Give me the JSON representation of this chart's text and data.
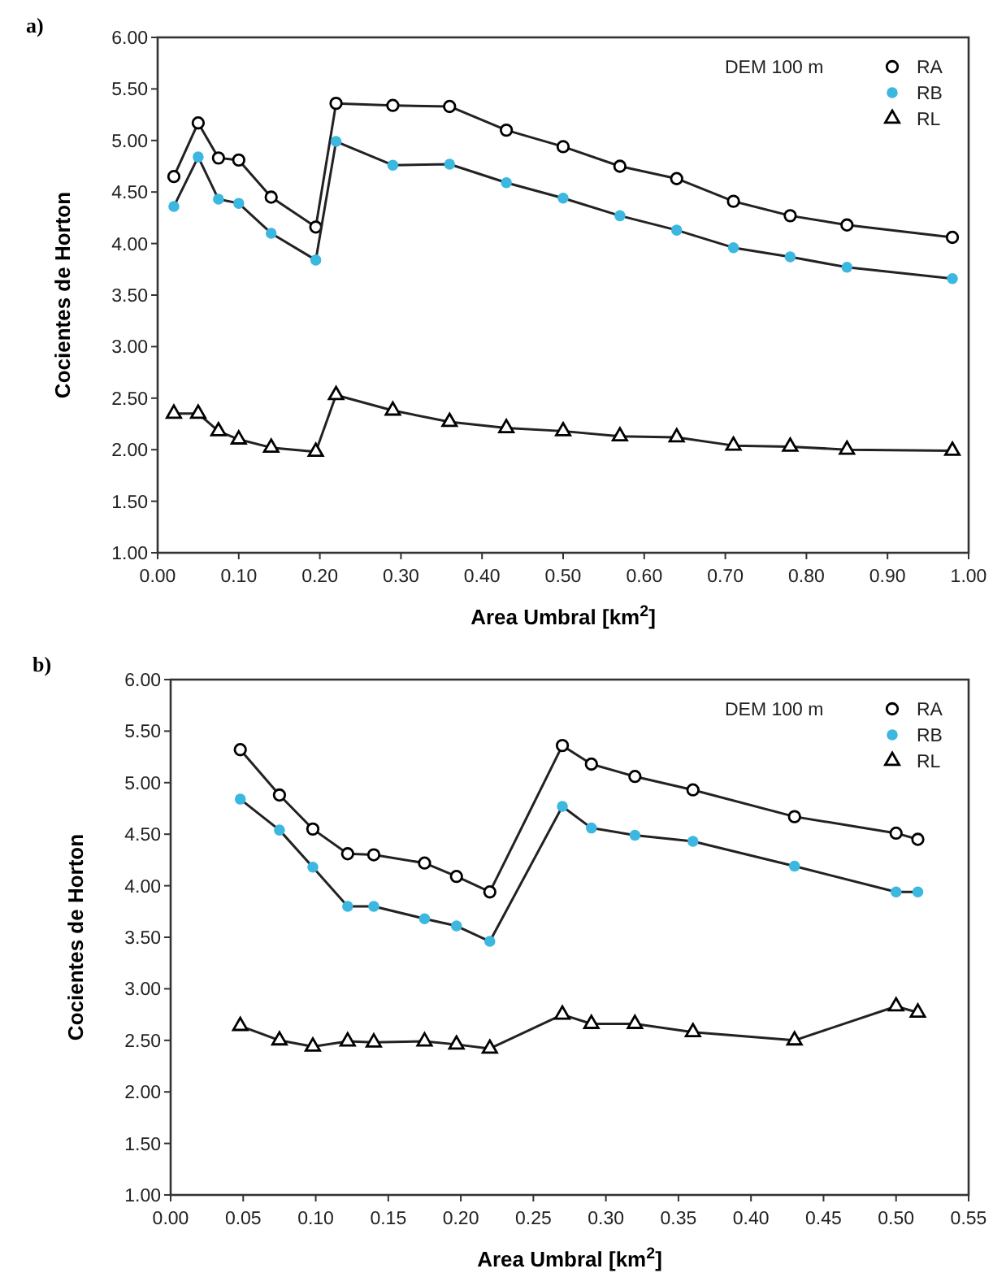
{
  "chart_data": [
    {
      "type": "line",
      "title": "a)",
      "xlabel": "Area Umbral [km$^{2}$]",
      "ylabel": "Cocientes de Horton",
      "legend_title": "DEM 100 m",
      "legend": "top right",
      "xlim": [
        0,
        1
      ],
      "ylim": [
        1,
        6
      ],
      "xticks": [
        {
          "value": 0,
          "label": "0.00"
        },
        {
          "value": 0.1,
          "label": "0.10"
        },
        {
          "value": 0.2,
          "label": "0.20"
        },
        {
          "value": 0.3,
          "label": "0.30"
        },
        {
          "value": 0.4,
          "label": "0.40"
        },
        {
          "value": 0.5,
          "label": "0.50"
        },
        {
          "value": 0.6,
          "label": "0.60"
        },
        {
          "value": 0.7,
          "label": "0.70"
        },
        {
          "value": 0.8,
          "label": "0.80"
        },
        {
          "value": 0.9,
          "label": "0.90"
        },
        {
          "value": 1,
          "label": "1.00"
        }
      ],
      "yticks": [
        {
          "value": 1,
          "label": "1.00"
        },
        {
          "value": 1.5,
          "label": "1.50"
        },
        {
          "value": 2,
          "label": "2.00"
        },
        {
          "value": 2.5,
          "label": "2.50"
        },
        {
          "value": 3,
          "label": "3.00"
        },
        {
          "value": 3.5,
          "label": "3.50"
        },
        {
          "value": 4,
          "label": "4.00"
        },
        {
          "value": 4.5,
          "label": "4.50"
        },
        {
          "value": 5,
          "label": "5.00"
        },
        {
          "value": 5.5,
          "label": "5.50"
        },
        {
          "value": 6,
          "label": "6.00"
        }
      ],
      "x": [
        0.02,
        0.05,
        0.075,
        0.1,
        0.14,
        0.195,
        0.22,
        0.29,
        0.36,
        0.43,
        0.5,
        0.57,
        0.64,
        0.71,
        0.78,
        0.85,
        0.98
      ],
      "series": [
        {
          "name": "RA",
          "color": "#000000",
          "marker": "circle",
          "values": [
            4.65,
            5.17,
            4.83,
            4.81,
            4.45,
            4.16,
            5.36,
            5.34,
            5.33,
            5.1,
            4.94,
            4.75,
            4.63,
            4.41,
            4.27,
            4.18,
            4.06
          ]
        },
        {
          "name": "RB",
          "color": "#3bb7e0",
          "marker": "circle",
          "values": [
            4.36,
            4.84,
            4.43,
            4.39,
            4.1,
            3.84,
            4.99,
            4.76,
            4.77,
            4.59,
            4.44,
            4.27,
            4.13,
            3.96,
            3.87,
            3.77,
            3.66
          ]
        },
        {
          "name": "RL",
          "color": "#000000",
          "marker": "triangle",
          "values": [
            2.35,
            2.35,
            2.18,
            2.1,
            2.02,
            1.98,
            2.53,
            2.38,
            2.27,
            2.21,
            2.18,
            2.13,
            2.12,
            2.04,
            2.03,
            2.0,
            1.99
          ]
        }
      ]
    },
    {
      "type": "line",
      "title": "b)",
      "xlabel": "Area Umbral [km$^{2}$]",
      "ylabel": "Cocientes de Horton",
      "legend_title": "DEM 100 m",
      "legend": "top right",
      "xlim": [
        0,
        0.55
      ],
      "ylim": [
        1,
        6
      ],
      "xticks": [
        {
          "value": 0,
          "label": "0.00"
        },
        {
          "value": 0.05,
          "label": "0.05"
        },
        {
          "value": 0.1,
          "label": "0.10"
        },
        {
          "value": 0.15,
          "label": "0.15"
        },
        {
          "value": 0.2,
          "label": "0.20"
        },
        {
          "value": 0.25,
          "label": "0.25"
        },
        {
          "value": 0.3,
          "label": "0.30"
        },
        {
          "value": 0.35,
          "label": "0.35"
        },
        {
          "value": 0.4,
          "label": "0.40"
        },
        {
          "value": 0.45,
          "label": "0.45"
        },
        {
          "value": 0.5,
          "label": "0.50"
        },
        {
          "value": 0.55,
          "label": "0.55"
        }
      ],
      "yticks": [
        {
          "value": 1,
          "label": "1.00"
        },
        {
          "value": 1.5,
          "label": "1.50"
        },
        {
          "value": 2,
          "label": "2.00"
        },
        {
          "value": 2.5,
          "label": "2.50"
        },
        {
          "value": 3,
          "label": "3.00"
        },
        {
          "value": 3.5,
          "label": "3.50"
        },
        {
          "value": 4,
          "label": "4.00"
        },
        {
          "value": 4.5,
          "label": "4.50"
        },
        {
          "value": 5,
          "label": "5.00"
        },
        {
          "value": 5.5,
          "label": "5.50"
        },
        {
          "value": 6,
          "label": "6.00"
        }
      ],
      "x": [
        0.048,
        0.075,
        0.098,
        0.122,
        0.14,
        0.175,
        0.197,
        0.22,
        0.27,
        0.29,
        0.32,
        0.36,
        0.43,
        0.5,
        0.515
      ],
      "series": [
        {
          "name": "RA",
          "color": "#000000",
          "marker": "circle",
          "values": [
            5.32,
            4.88,
            4.55,
            4.31,
            4.3,
            4.22,
            4.09,
            3.94,
            5.36,
            5.18,
            5.06,
            4.93,
            4.67,
            4.51,
            4.45
          ]
        },
        {
          "name": "RB",
          "color": "#3bb7e0",
          "marker": "circle",
          "values": [
            4.84,
            4.54,
            4.18,
            3.8,
            3.8,
            3.68,
            3.61,
            3.46,
            4.77,
            4.56,
            4.49,
            4.43,
            4.19,
            3.94,
            3.94
          ]
        },
        {
          "name": "RL",
          "color": "#000000",
          "marker": "triangle",
          "values": [
            2.64,
            2.5,
            2.44,
            2.49,
            2.48,
            2.49,
            2.46,
            2.42,
            2.75,
            2.66,
            2.66,
            2.58,
            2.5,
            2.83,
            2.77
          ]
        }
      ]
    }
  ]
}
